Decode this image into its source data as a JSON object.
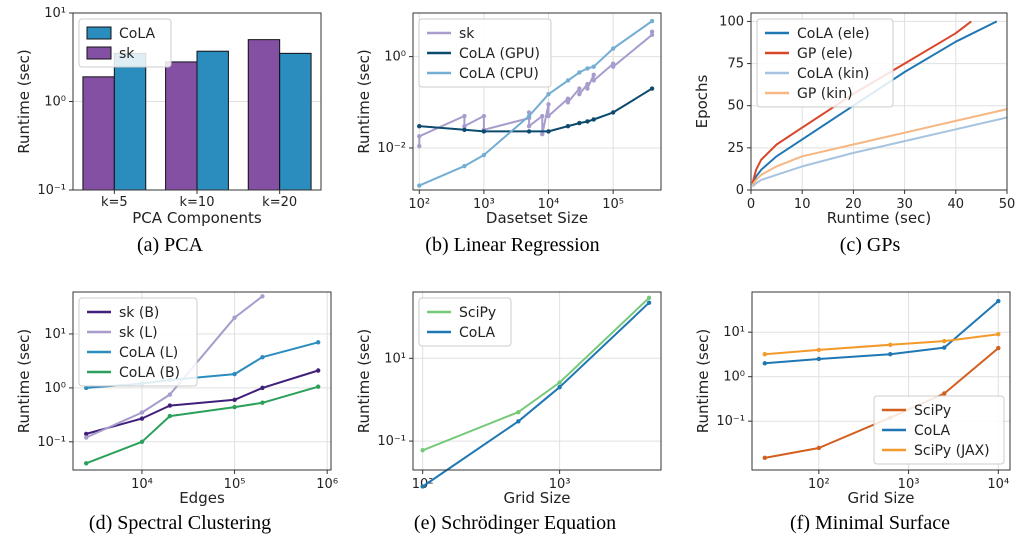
{
  "chart_data": [
    {
      "id": "a",
      "type": "bar",
      "caption": "(a) PCA",
      "xlabel": "PCA Components",
      "ylabel": "Runtime (sec)",
      "yscale": "log",
      "ylim": [
        0.1,
        10
      ],
      "yticks": [
        0.1,
        1,
        10
      ],
      "yticklabels": [
        "10⁻¹",
        "10⁰",
        "10¹"
      ],
      "categories": [
        "k=5",
        "k=10",
        "k=20"
      ],
      "grid": true,
      "legend_position": "upper-left",
      "series": [
        {
          "name": "CoLA",
          "color": "#2b8cbe",
          "values": [
            3.5,
            3.7,
            3.5
          ]
        },
        {
          "name": "sk",
          "color": "#8450a4",
          "values": [
            1.9,
            2.8,
            5.0
          ]
        }
      ]
    },
    {
      "id": "b",
      "type": "line",
      "caption": "(b) Linear Regression",
      "xlabel": "Dasetset Size",
      "ylabel": "Runtime (sec)",
      "xscale": "log",
      "yscale": "log",
      "xlim": [
        80,
        550000
      ],
      "ylim": [
        0.0012,
        9
      ],
      "xticks": [
        100,
        1000,
        10000,
        100000
      ],
      "xticklabels": [
        "10²",
        "10³",
        "10⁴",
        "10⁵"
      ],
      "yticks": [
        0.01,
        1
      ],
      "yticklabels": [
        "10⁻²",
        "10⁰"
      ],
      "grid": true,
      "legend_position": "upper-left",
      "series": [
        {
          "name": "sk",
          "color": "#a89ccd",
          "x": [
            100,
            100,
            500,
            500,
            1000,
            1000,
            5000,
            5000,
            5000,
            8000,
            8000,
            10000,
            10000,
            20000,
            20000,
            30000,
            30000,
            40000,
            40000,
            50000,
            50000,
            100000,
            100000,
            400000,
            400000
          ],
          "y": [
            0.011,
            0.018,
            0.05,
            0.03,
            0.05,
            0.025,
            0.045,
            0.06,
            0.03,
            0.05,
            0.02,
            0.09,
            0.05,
            0.12,
            0.1,
            0.2,
            0.15,
            0.25,
            0.2,
            0.4,
            0.3,
            0.7,
            0.6,
            3.0,
            3.5
          ]
        },
        {
          "name": "CoLA (GPU)",
          "color": "#0c4a6e",
          "x": [
            100,
            500,
            1000,
            5000,
            10000,
            20000,
            30000,
            40000,
            50000,
            100000,
            400000
          ],
          "y": [
            0.03,
            0.025,
            0.023,
            0.023,
            0.023,
            0.03,
            0.035,
            0.038,
            0.042,
            0.06,
            0.2
          ]
        },
        {
          "name": "CoLA (CPU)",
          "color": "#74aed3",
          "x": [
            100,
            500,
            1000,
            5000,
            10000,
            20000,
            30000,
            40000,
            50000,
            100000,
            400000
          ],
          "y": [
            0.0015,
            0.004,
            0.007,
            0.05,
            0.15,
            0.3,
            0.45,
            0.55,
            0.6,
            1.5,
            6.0
          ]
        }
      ]
    },
    {
      "id": "c",
      "type": "line",
      "caption": "(c) GPs",
      "xlabel": "Runtime (sec)",
      "ylabel": "Epochs",
      "xlim": [
        0,
        50
      ],
      "ylim": [
        0,
        105
      ],
      "xticks": [
        0,
        10,
        20,
        30,
        40,
        50
      ],
      "xticklabels": [
        "0",
        "10",
        "20",
        "30",
        "40",
        "50"
      ],
      "yticks": [
        0,
        25,
        50,
        75,
        100
      ],
      "yticklabels": [
        "0",
        "25",
        "50",
        "75",
        "100"
      ],
      "grid": true,
      "legend_position": "upper-left",
      "series": [
        {
          "name": "CoLA (ele)",
          "color": "#1f77b4",
          "x": [
            0.3,
            1,
            2,
            5,
            10,
            20,
            30,
            40,
            48
          ],
          "y": [
            3,
            8,
            12,
            20,
            30,
            50,
            70,
            88,
            100
          ]
        },
        {
          "name": "GP (ele)",
          "color": "#d9472b",
          "x": [
            0.3,
            1,
            2,
            5,
            10,
            15,
            20,
            30,
            40,
            43
          ],
          "y": [
            4,
            12,
            18,
            27,
            37,
            47,
            57,
            75,
            93,
            100
          ]
        },
        {
          "name": "CoLA (kin)",
          "color": "#a6c4e0",
          "x": [
            0.3,
            1,
            2,
            5,
            10,
            20,
            30,
            40,
            50
          ],
          "y": [
            2,
            4,
            6,
            9,
            14,
            22,
            29,
            36,
            43
          ]
        },
        {
          "name": "GP (kin)",
          "color": "#f7b783",
          "x": [
            0.3,
            1,
            2,
            5,
            10,
            20,
            30,
            40,
            50
          ],
          "y": [
            3,
            6,
            9,
            14,
            20,
            27,
            34,
            41,
            48
          ]
        }
      ]
    },
    {
      "id": "d",
      "type": "line",
      "caption": "(d) Spectral Clustering",
      "xlabel": "Edges",
      "ylabel": "Runtime (sec)",
      "xscale": "log",
      "yscale": "log",
      "xlim": [
        1800,
        1100000
      ],
      "ylim": [
        0.03,
        60
      ],
      "xticks": [
        10000,
        100000,
        1000000
      ],
      "xticklabels": [
        "10⁴",
        "10⁵",
        "10⁶"
      ],
      "yticks": [
        0.1,
        1,
        10
      ],
      "yticklabels": [
        "10⁻¹",
        "10⁰",
        "10¹"
      ],
      "grid": true,
      "legend_position": "upper-left",
      "series": [
        {
          "name": "sk (B)",
          "color": "#3f1f7a",
          "x": [
            2500,
            10000,
            20000,
            100000,
            200000,
            800000
          ],
          "y": [
            0.14,
            0.27,
            0.47,
            0.6,
            1.0,
            2.1
          ]
        },
        {
          "name": "sk (L)",
          "color": "#a89ccd",
          "x": [
            2500,
            10000,
            20000,
            100000,
            200000
          ],
          "y": [
            0.12,
            0.35,
            0.75,
            20,
            50
          ]
        },
        {
          "name": "CoLA (L)",
          "color": "#2b8cbe",
          "x": [
            2500,
            10000,
            20000,
            100000,
            200000,
            800000
          ],
          "y": [
            1.0,
            1.2,
            1.4,
            1.8,
            3.7,
            7.0
          ]
        },
        {
          "name": "CoLA (B)",
          "color": "#2ca05a",
          "x": [
            2500,
            10000,
            20000,
            100000,
            200000,
            800000
          ],
          "y": [
            0.04,
            0.1,
            0.3,
            0.44,
            0.53,
            1.05
          ]
        }
      ]
    },
    {
      "id": "e",
      "type": "line",
      "caption": "(e) Schrödinger Equation",
      "xlabel": "Grid Size",
      "ylabel": "Runtime (sec)",
      "xscale": "log",
      "yscale": "log",
      "xlim": [
        85,
        5500
      ],
      "ylim": [
        0.02,
        400
      ],
      "xticks": [
        100,
        1000
      ],
      "xticklabels": [
        "10²",
        "10³"
      ],
      "yticks": [
        0.1,
        10
      ],
      "yticklabels": [
        "10⁻¹",
        "10¹"
      ],
      "grid": true,
      "legend_position": "upper-left",
      "series": [
        {
          "name": "SciPy",
          "color": "#77c97a",
          "x": [
            100,
            500,
            1000,
            4500
          ],
          "y": [
            0.06,
            0.5,
            2.6,
            290
          ]
        },
        {
          "name": "CoLA",
          "color": "#1f77b4",
          "x": [
            100,
            500,
            1000,
            4500
          ],
          "y": [
            0.008,
            0.3,
            2.0,
            220
          ]
        }
      ]
    },
    {
      "id": "f",
      "type": "line",
      "caption": "(f) Minimal Surface",
      "xlabel": "Grid Size",
      "ylabel": "Runtime (sec)",
      "xscale": "log",
      "yscale": "log",
      "xlim": [
        18,
        13500
      ],
      "ylim": [
        0.008,
        80
      ],
      "xticks": [
        100,
        1000,
        10000
      ],
      "xticklabels": [
        "10²",
        "10³",
        "10⁴"
      ],
      "yticks": [
        0.1,
        1,
        10
      ],
      "yticklabels": [
        "10⁻¹",
        "10⁰",
        "10¹"
      ],
      "grid": true,
      "legend_position": "lower-right",
      "series": [
        {
          "name": "SciPy",
          "color": "#d35f1f",
          "x": [
            25,
            100,
            625,
            2500,
            10000
          ],
          "y": [
            0.015,
            0.025,
            0.12,
            0.42,
            4.4
          ]
        },
        {
          "name": "CoLA",
          "color": "#1f77b4",
          "x": [
            25,
            100,
            625,
            2500,
            10000
          ],
          "y": [
            2.0,
            2.5,
            3.2,
            4.5,
            50
          ]
        },
        {
          "name": "SciPy (JAX)",
          "color": "#f39a2b",
          "x": [
            25,
            100,
            625,
            2500,
            10000
          ],
          "y": [
            3.2,
            4.0,
            5.2,
            6.3,
            9.0
          ]
        }
      ]
    }
  ]
}
